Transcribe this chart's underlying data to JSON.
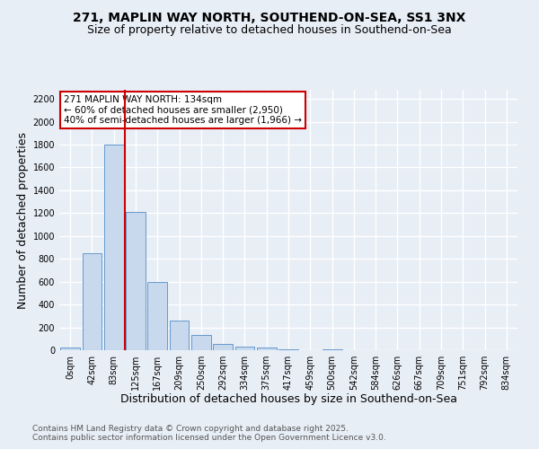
{
  "title1": "271, MAPLIN WAY NORTH, SOUTHEND-ON-SEA, SS1 3NX",
  "title2": "Size of property relative to detached houses in Southend-on-Sea",
  "xlabel": "Distribution of detached houses by size in Southend-on-Sea",
  "ylabel": "Number of detached properties",
  "bar_labels": [
    "0sqm",
    "42sqm",
    "83sqm",
    "125sqm",
    "167sqm",
    "209sqm",
    "250sqm",
    "292sqm",
    "334sqm",
    "375sqm",
    "417sqm",
    "459sqm",
    "500sqm",
    "542sqm",
    "584sqm",
    "626sqm",
    "667sqm",
    "709sqm",
    "751sqm",
    "792sqm",
    "834sqm"
  ],
  "bar_values": [
    25,
    850,
    1800,
    1210,
    600,
    260,
    135,
    55,
    35,
    20,
    10,
    0,
    10,
    0,
    0,
    0,
    0,
    0,
    0,
    0,
    0
  ],
  "bar_color": "#c8d9ee",
  "bar_edgecolor": "#6699cc",
  "ylim": [
    0,
    2280
  ],
  "yticks": [
    0,
    200,
    400,
    600,
    800,
    1000,
    1200,
    1400,
    1600,
    1800,
    2000,
    2200
  ],
  "vline_color": "#cc0000",
  "vline_index": 2.5,
  "annotation_text": "271 MAPLIN WAY NORTH: 134sqm\n← 60% of detached houses are smaller (2,950)\n40% of semi-detached houses are larger (1,966) →",
  "annotation_box_color": "#cc0000",
  "annotation_bg": "#ffffff",
  "footnote1": "Contains HM Land Registry data © Crown copyright and database right 2025.",
  "footnote2": "Contains public sector information licensed under the Open Government Licence v3.0.",
  "bg_color": "#e8eef6",
  "plot_bg_color": "#e8eef6",
  "grid_color": "#ffffff",
  "title_fontsize": 10,
  "subtitle_fontsize": 9,
  "axis_label_fontsize": 9,
  "tick_fontsize": 7,
  "footnote_fontsize": 6.5
}
